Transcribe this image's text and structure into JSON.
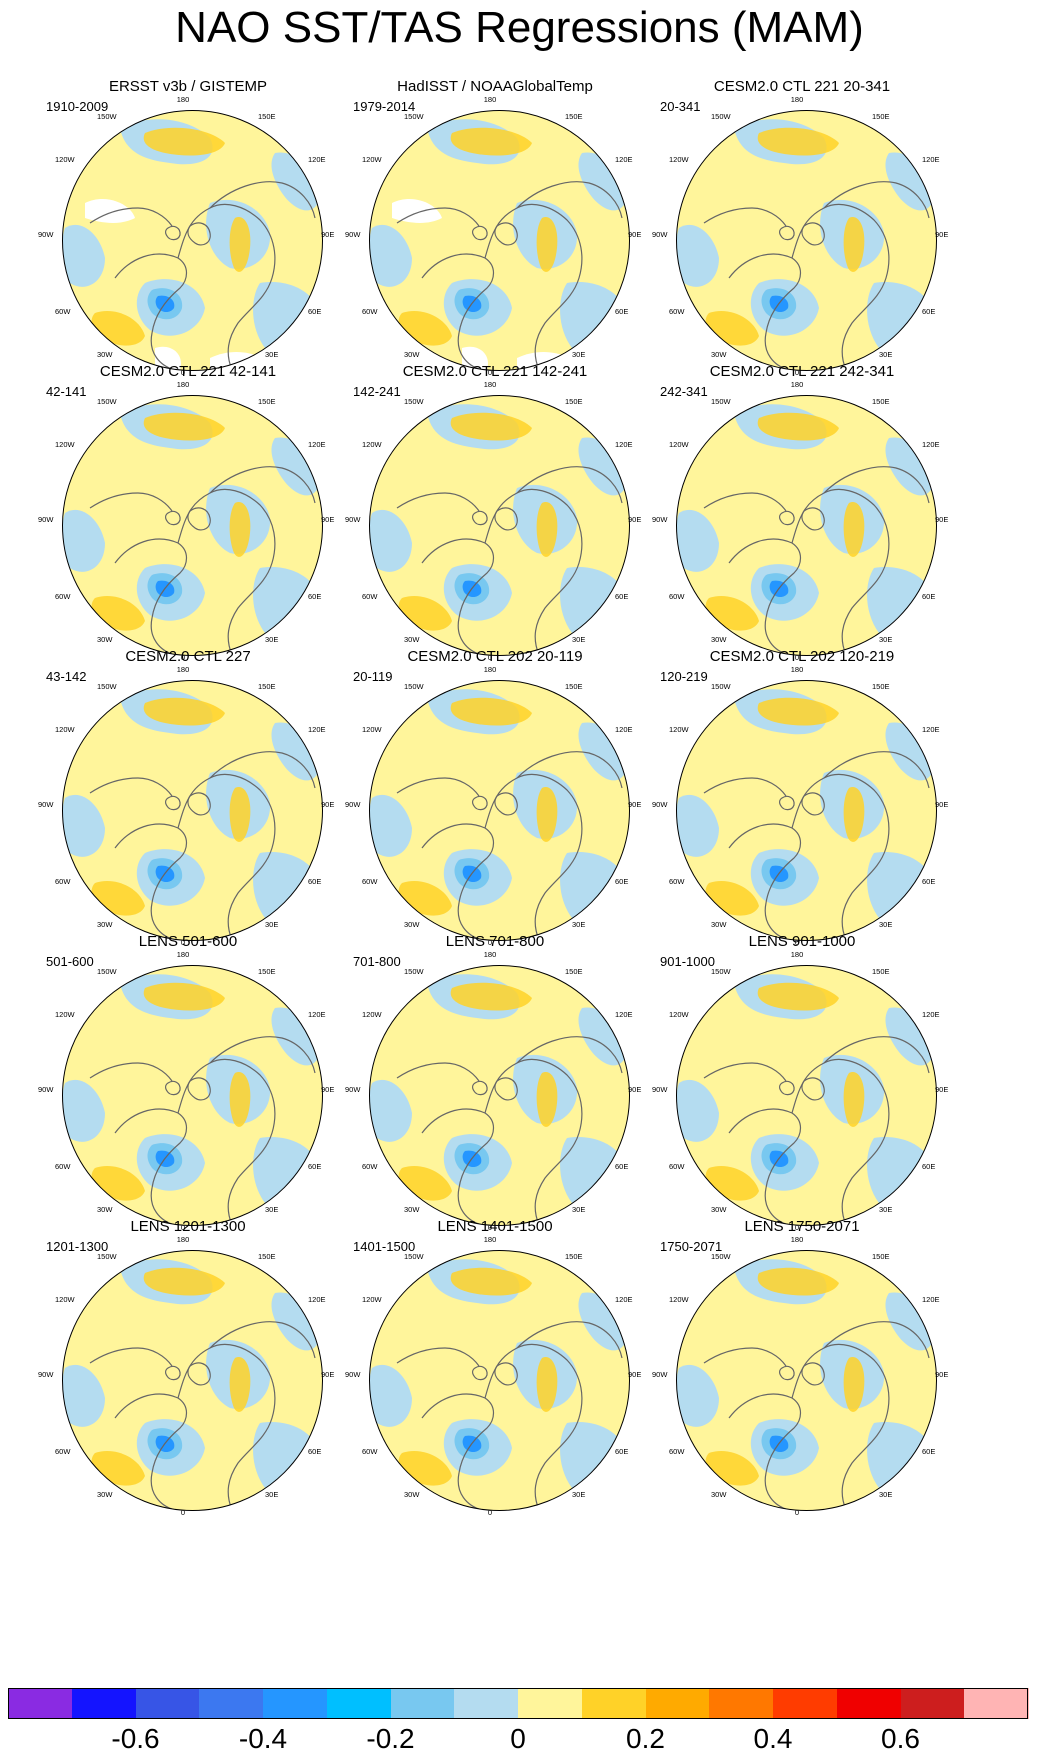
{
  "title": "NAO SST/TAS Regressions (MAM)",
  "map_labels": {
    "lon_180": "180",
    "lon_0": "0",
    "lon_90w": "90W",
    "lon_90e": "90E",
    "lon_150w": "150W",
    "lon_150e": "150E",
    "lon_120w": "120W",
    "lon_120e": "120E",
    "lon_60w": "60W",
    "lon_60e": "60E",
    "lon_30w": "30W",
    "lon_30e": "30E"
  },
  "panels": [
    {
      "title": "ERSST v3b / GISTEMP",
      "period": "1910-2009",
      "missing_data": true
    },
    {
      "title": "HadISST / NOAAGlobalTemp",
      "period": "1979-2014",
      "missing_data": true
    },
    {
      "title": "CESM2.0 CTL 221 20-341",
      "period": "20-341",
      "missing_data": false
    },
    {
      "title": "CESM2.0 CTL 221 42-141",
      "period": "42-141",
      "missing_data": false
    },
    {
      "title": "CESM2.0 CTL 221 142-241",
      "period": "142-241",
      "missing_data": false
    },
    {
      "title": "CESM2.0 CTL 221 242-341",
      "period": "242-341",
      "missing_data": false
    },
    {
      "title": "CESM2.0 CTL 227",
      "period": "43-142",
      "missing_data": false
    },
    {
      "title": "CESM2.0 CTL 202 20-119",
      "period": "20-119",
      "missing_data": false
    },
    {
      "title": "CESM2.0 CTL 202 120-219",
      "period": "120-219",
      "missing_data": false
    },
    {
      "title": "LENS 501-600",
      "period": "501-600",
      "missing_data": false
    },
    {
      "title": "LENS 701-800",
      "period": "701-800",
      "missing_data": false
    },
    {
      "title": "LENS 901-1000",
      "period": "901-1000",
      "missing_data": false
    },
    {
      "title": "LENS 1201-1300",
      "period": "1201-1300",
      "missing_data": false
    },
    {
      "title": "LENS 1401-1500",
      "period": "1401-1500",
      "missing_data": false
    },
    {
      "title": "LENS 1750-2071",
      "period": "1750-2071",
      "missing_data": false
    }
  ],
  "colorbar": {
    "colors": [
      "#8a2be2",
      "#1414ff",
      "#3755e6",
      "#3c78f0",
      "#2596ff",
      "#00bfff",
      "#78c8f0",
      "#b4dcf0",
      "#fff59b",
      "#ffd228",
      "#ffaa00",
      "#ff7800",
      "#ff3c00",
      "#f00000",
      "#cd1e1e",
      "#ffb4b4"
    ],
    "tick_labels": [
      "-0.6",
      "-0.4",
      "-0.2",
      "0",
      "0.2",
      "0.4",
      "0.6"
    ]
  },
  "colors": {
    "ocean_zero_pos": "#fff59b",
    "zero_neg": "#b4dcf0",
    "coast": "#666666",
    "missing": "#ffffff"
  }
}
